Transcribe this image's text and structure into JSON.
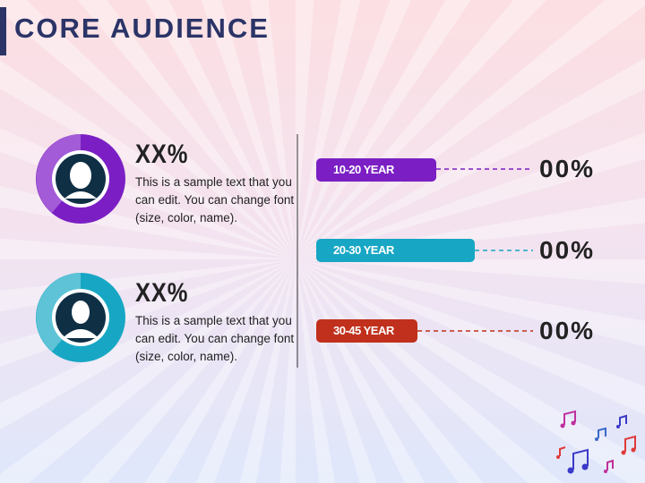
{
  "header": {
    "title": "CORE AUDIENCE"
  },
  "profiles": [
    {
      "stat": "XX%",
      "text": "This is a sample text that you can edit. You can change font (size, color, name)."
    },
    {
      "stat": "XX%",
      "text": "This is a sample text that you can edit. You can change font (size, color, name)."
    }
  ],
  "age_groups": [
    {
      "label": "10-20 YEAR",
      "value": "00%"
    },
    {
      "label": "20-30 YEAR",
      "value": "00%"
    },
    {
      "label": "30-45 YEAR",
      "value": "00%"
    }
  ]
}
